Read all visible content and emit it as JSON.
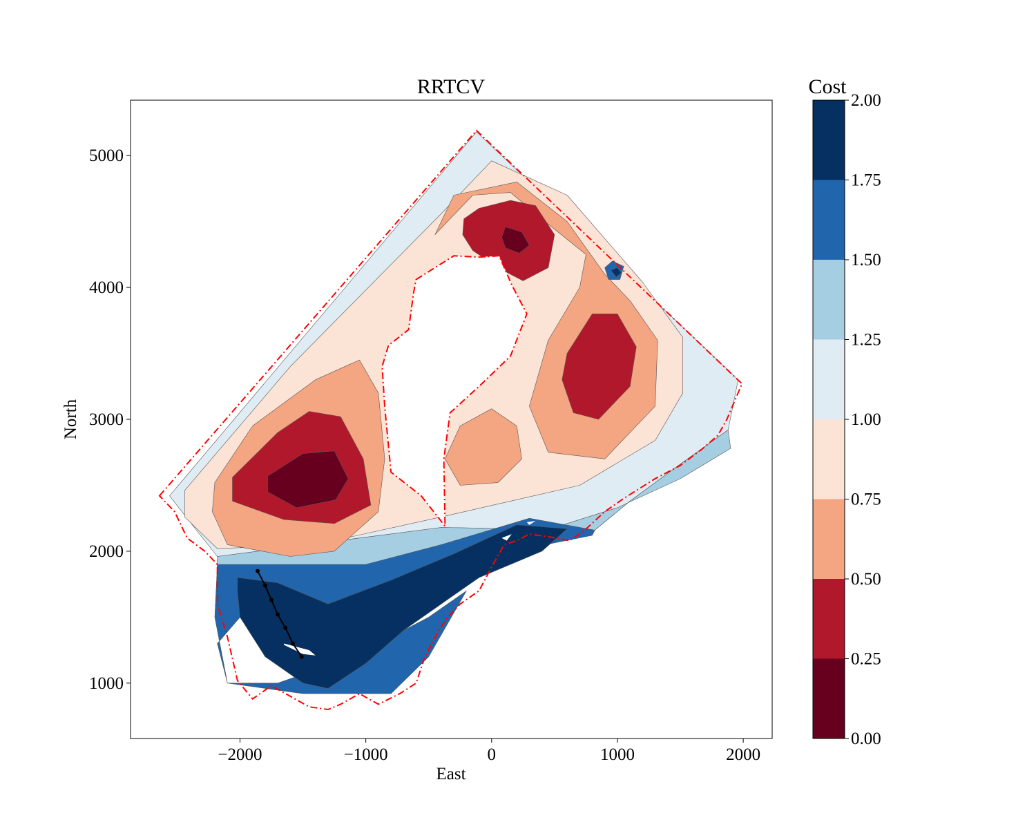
{
  "chart_data": {
    "type": "contourf",
    "title": "RRTCV",
    "xlabel": "East",
    "ylabel": "North",
    "xlim": [
      -2870,
      2230
    ],
    "ylim": [
      580,
      5420
    ],
    "xticks": [
      -2000,
      -1000,
      0,
      1000,
      2000
    ],
    "xtick_labels": [
      "−2000",
      "−1000",
      "0",
      "1000",
      "2000"
    ],
    "yticks": [
      1000,
      2000,
      3000,
      4000,
      5000
    ],
    "ytick_labels": [
      "1000",
      "2000",
      "3000",
      "4000",
      "5000"
    ],
    "grid": false,
    "colormap": "RdBu",
    "colorbar": {
      "label": "Cost",
      "levels": [
        0.0,
        0.25,
        0.5,
        0.75,
        1.0,
        1.25,
        1.5,
        1.75,
        2.0
      ],
      "tick_labels": [
        "0.00",
        "0.25",
        "0.50",
        "0.75",
        "1.00",
        "1.25",
        "1.50",
        "1.75",
        "2.00"
      ],
      "colors": [
        "#67001f",
        "#b2182b",
        "#f4a582",
        "#fbe3d6",
        "#e0ecf4",
        "#a6cee3",
        "#2166ac",
        "#053061"
      ]
    },
    "cost_regions": [
      {
        "band": "1.00-1.25",
        "outline": [
          [
            -2560,
            2420
          ],
          [
            -120,
            5180
          ],
          [
            1960,
            3300
          ],
          [
            1880,
            2920
          ],
          [
            1500,
            2660
          ],
          [
            1100,
            2380
          ],
          [
            820,
            2160
          ],
          [
            -400,
            2180
          ],
          [
            -2180,
            1960
          ],
          [
            -2380,
            2200
          ]
        ]
      },
      {
        "band": "0.75-1.00",
        "outline": [
          [
            -2440,
            2460
          ],
          [
            -1600,
            3400
          ],
          [
            -400,
            4560
          ],
          [
            0,
            4960
          ],
          [
            600,
            4700
          ],
          [
            1200,
            4040
          ],
          [
            1520,
            3620
          ],
          [
            1520,
            3200
          ],
          [
            1300,
            2840
          ],
          [
            700,
            2500
          ],
          [
            -400,
            2260
          ],
          [
            -1400,
            2050
          ],
          [
            -2180,
            2020
          ],
          [
            -2440,
            2260
          ]
        ]
      },
      {
        "band": "1.25-1.50",
        "outline": [
          [
            -2180,
            1960
          ],
          [
            -400,
            2180
          ],
          [
            820,
            2160
          ],
          [
            1100,
            2380
          ],
          [
            1500,
            2660
          ],
          [
            1880,
            2920
          ],
          [
            1900,
            2780
          ],
          [
            1500,
            2550
          ],
          [
            1000,
            2330
          ],
          [
            500,
            2180
          ],
          [
            -400,
            2000
          ],
          [
            -1400,
            1700
          ],
          [
            -2180,
            1780
          ]
        ]
      },
      {
        "band": "1.50-1.75",
        "outline": [
          [
            -2180,
            1900
          ],
          [
            -1600,
            1900
          ],
          [
            -1000,
            1900
          ],
          [
            -400,
            2050
          ],
          [
            300,
            2250
          ],
          [
            820,
            2160
          ],
          [
            800,
            2120
          ],
          [
            -100,
            1950
          ],
          [
            -700,
            1650
          ],
          [
            -1400,
            1480
          ],
          [
            -2000,
            1500
          ],
          [
            -2180,
            1300
          ],
          [
            -2100,
            1000
          ],
          [
            -1500,
            920
          ],
          [
            -800,
            920
          ],
          [
            -500,
            1200
          ],
          [
            -200,
            1700
          ],
          [
            -500,
            1500
          ],
          [
            -1100,
            1200
          ],
          [
            -1700,
            1000
          ],
          [
            -2100,
            1000
          ],
          [
            -2200,
            1500
          ]
        ]
      },
      {
        "band": "1.75-2.00",
        "outline": [
          [
            -2020,
            1800
          ],
          [
            -1700,
            1760
          ],
          [
            -1300,
            1600
          ],
          [
            -800,
            1780
          ],
          [
            -300,
            1980
          ],
          [
            200,
            2200
          ],
          [
            600,
            2170
          ],
          [
            400,
            2000
          ],
          [
            -100,
            1800
          ],
          [
            -400,
            1600
          ],
          [
            -700,
            1400
          ],
          [
            -1000,
            1150
          ],
          [
            -1300,
            960
          ],
          [
            -1500,
            1000
          ],
          [
            -1800,
            1200
          ],
          [
            -2000,
            1500
          ],
          [
            -2020,
            1700
          ]
        ]
      },
      {
        "band": "0.50-0.75",
        "outline": [
          [
            -2200,
            2520
          ],
          [
            -1900,
            2950
          ],
          [
            -1400,
            3300
          ],
          [
            -1050,
            3450
          ],
          [
            -900,
            3200
          ],
          [
            -850,
            2700
          ],
          [
            -900,
            2300
          ],
          [
            -1250,
            2000
          ],
          [
            -1600,
            1960
          ],
          [
            -2100,
            2050
          ],
          [
            -2220,
            2300
          ]
        ]
      },
      {
        "band": "0.25-0.50",
        "outline": [
          [
            -2060,
            2560
          ],
          [
            -1700,
            2900
          ],
          [
            -1450,
            3060
          ],
          [
            -1200,
            3020
          ],
          [
            -1020,
            2700
          ],
          [
            -960,
            2350
          ],
          [
            -1250,
            2210
          ],
          [
            -1650,
            2240
          ],
          [
            -2060,
            2380
          ]
        ]
      },
      {
        "band": "0.00-0.25",
        "outline": [
          [
            -1780,
            2570
          ],
          [
            -1500,
            2740
          ],
          [
            -1250,
            2760
          ],
          [
            -1140,
            2550
          ],
          [
            -1240,
            2390
          ],
          [
            -1550,
            2330
          ],
          [
            -1780,
            2450
          ]
        ]
      },
      {
        "band": "0.50-0.75",
        "outline": [
          [
            -450,
            4400
          ],
          [
            -150,
            4700
          ],
          [
            150,
            4720
          ],
          [
            450,
            4480
          ],
          [
            750,
            4250
          ],
          [
            700,
            4000
          ],
          [
            450,
            3600
          ],
          [
            300,
            3100
          ],
          [
            450,
            2750
          ],
          [
            900,
            2700
          ],
          [
            1300,
            3100
          ],
          [
            1320,
            3600
          ],
          [
            1100,
            3900
          ],
          [
            900,
            4100
          ],
          [
            600,
            4500
          ],
          [
            200,
            4800
          ],
          [
            -300,
            4700
          ]
        ]
      },
      {
        "band": "0.25-0.50",
        "outline": [
          [
            -220,
            4520
          ],
          [
            -100,
            4600
          ],
          [
            150,
            4660
          ],
          [
            350,
            4620
          ],
          [
            500,
            4400
          ],
          [
            450,
            4150
          ],
          [
            250,
            4050
          ],
          [
            50,
            4150
          ],
          [
            -150,
            4280
          ],
          [
            -230,
            4400
          ]
        ]
      },
      {
        "band": "0.00-0.25",
        "outline": [
          [
            110,
            4460
          ],
          [
            240,
            4420
          ],
          [
            300,
            4320
          ],
          [
            220,
            4260
          ],
          [
            110,
            4300
          ],
          [
            80,
            4380
          ]
        ]
      },
      {
        "band": "0.25-0.50",
        "outline": [
          [
            600,
            3500
          ],
          [
            800,
            3800
          ],
          [
            1000,
            3800
          ],
          [
            1150,
            3550
          ],
          [
            1100,
            3250
          ],
          [
            850,
            3000
          ],
          [
            650,
            3050
          ],
          [
            560,
            3300
          ]
        ]
      },
      {
        "band": "0.50-0.75",
        "outline": [
          [
            -370,
            2700
          ],
          [
            -250,
            2950
          ],
          [
            0,
            3080
          ],
          [
            200,
            2950
          ],
          [
            240,
            2700
          ],
          [
            50,
            2520
          ],
          [
            -250,
            2500
          ]
        ]
      },
      {
        "band": "1.50-1.75",
        "outline": [
          [
            900,
            4150
          ],
          [
            960,
            4200
          ],
          [
            1050,
            4160
          ],
          [
            1020,
            4060
          ],
          [
            930,
            4060
          ]
        ]
      },
      {
        "band": "1.75-2.00",
        "outline": [
          [
            950,
            4130
          ],
          [
            1000,
            4150
          ],
          [
            1030,
            4110
          ],
          [
            990,
            4080
          ]
        ]
      }
    ],
    "voids": [
      {
        "outline": [
          [
            -600,
            4060
          ],
          [
            -300,
            4240
          ],
          [
            -100,
            4230
          ],
          [
            60,
            4240
          ],
          [
            160,
            4020
          ],
          [
            280,
            3800
          ],
          [
            150,
            3480
          ],
          [
            -100,
            3250
          ],
          [
            -330,
            3050
          ],
          [
            -380,
            2700
          ],
          [
            -370,
            2190
          ],
          [
            -560,
            2420
          ],
          [
            -800,
            2600
          ],
          [
            -850,
            3100
          ],
          [
            -870,
            3400
          ],
          [
            -820,
            3560
          ],
          [
            -660,
            3680
          ],
          [
            -620,
            3960
          ]
        ]
      },
      {
        "outline": [
          [
            -1650,
            1300
          ],
          [
            -1450,
            1250
          ],
          [
            -1400,
            1210
          ],
          [
            -1500,
            1220
          ],
          [
            -1650,
            1290
          ]
        ]
      },
      {
        "outline": [
          [
            80,
            2100
          ],
          [
            160,
            2130
          ],
          [
            120,
            2080
          ]
        ]
      },
      {
        "outline": [
          [
            280,
            2220
          ],
          [
            350,
            2230
          ],
          [
            300,
            2200
          ]
        ]
      }
    ],
    "domain_boundary": {
      "style": "dash-dot",
      "color": "#ff0000",
      "outline": [
        [
          -2640,
          2420
        ],
        [
          -120,
          5190
        ],
        [
          1990,
          3270
        ],
        [
          1870,
          3000
        ],
        [
          1800,
          2880
        ],
        [
          1680,
          2780
        ],
        [
          1500,
          2650
        ],
        [
          1300,
          2550
        ],
        [
          1050,
          2400
        ],
        [
          900,
          2300
        ],
        [
          740,
          2160
        ],
        [
          620,
          2080
        ],
        [
          450,
          2110
        ],
        [
          300,
          2130
        ],
        [
          200,
          2080
        ],
        [
          100,
          2050
        ],
        [
          0,
          1880
        ],
        [
          -100,
          1700
        ],
        [
          -250,
          1600
        ],
        [
          -350,
          1500
        ],
        [
          -420,
          1400
        ],
        [
          -530,
          1200
        ],
        [
          -600,
          1000
        ],
        [
          -730,
          920
        ],
        [
          -900,
          840
        ],
        [
          -1050,
          920
        ],
        [
          -1200,
          840
        ],
        [
          -1300,
          800
        ],
        [
          -1450,
          820
        ],
        [
          -1600,
          900
        ],
        [
          -1750,
          980
        ],
        [
          -1900,
          880
        ],
        [
          -2020,
          1020
        ],
        [
          -2100,
          1350
        ],
        [
          -2180,
          1600
        ],
        [
          -2180,
          1900
        ],
        [
          -2280,
          2000
        ],
        [
          -2420,
          2100
        ],
        [
          -2520,
          2300
        ],
        [
          -2640,
          2420
        ]
      ]
    },
    "path": {
      "color": "#000000",
      "points": [
        [
          -1860,
          1850
        ],
        [
          -1800,
          1740
        ],
        [
          -1750,
          1630
        ],
        [
          -1700,
          1520
        ],
        [
          -1640,
          1420
        ],
        [
          -1580,
          1300
        ],
        [
          -1510,
          1200
        ]
      ]
    }
  }
}
